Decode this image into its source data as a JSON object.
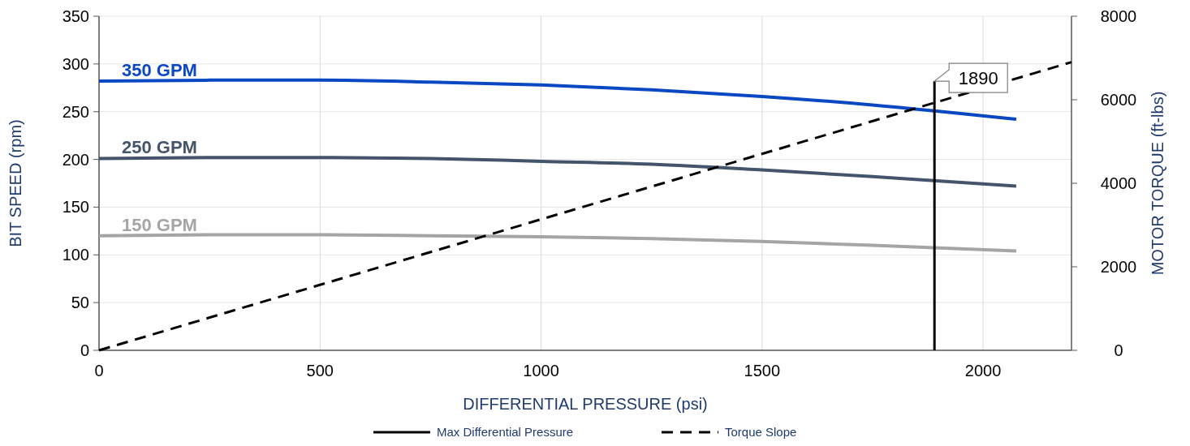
{
  "chart_data": {
    "type": "line",
    "xlabel": "DIFFERENTIAL PRESSURE (psi)",
    "ylabel": "BIT SPEED (rpm)",
    "y2label": "MOTOR TORQUE (ft-lbs)",
    "x": [
      0,
      250,
      500,
      750,
      1000,
      1250,
      1500,
      1750,
      2075
    ],
    "series": [
      {
        "name": "350 GPM",
        "color": "#0a47c2",
        "values": [
          282,
          283,
          283,
          281,
          278,
          273,
          266,
          257,
          242
        ]
      },
      {
        "name": "250 GPM",
        "color": "#44546a",
        "values": [
          201,
          202,
          202,
          201,
          198,
          195,
          189,
          182,
          172
        ]
      },
      {
        "name": "150 GPM",
        "color": "#a5a5a5",
        "values": [
          120,
          121,
          121,
          120,
          119,
          117,
          114,
          110,
          104
        ]
      },
      {
        "name": "Max Differential Pressure",
        "color": "#000000",
        "x": [
          1890,
          1890
        ],
        "values": [
          0,
          282
        ],
        "line_style": "solid"
      },
      {
        "name": "Torque Slope",
        "color": "#000000",
        "axis": "y2",
        "x": [
          0,
          2200
        ],
        "values": [
          0,
          6900
        ],
        "line_style": "dashed"
      }
    ],
    "annotations": [
      {
        "text": "1890",
        "x": 1890,
        "y": 282
      }
    ],
    "xlim": [
      0,
      2200
    ],
    "xticks": [
      0,
      500,
      1000,
      1500,
      2000
    ],
    "ylim": [
      0,
      350
    ],
    "yticks": [
      0,
      50,
      100,
      150,
      200,
      250,
      300,
      350
    ],
    "y2lim": [
      0,
      8000
    ],
    "y2ticks": [
      0,
      2000,
      4000,
      6000,
      8000
    ],
    "grid": true,
    "legend": "bottom"
  }
}
